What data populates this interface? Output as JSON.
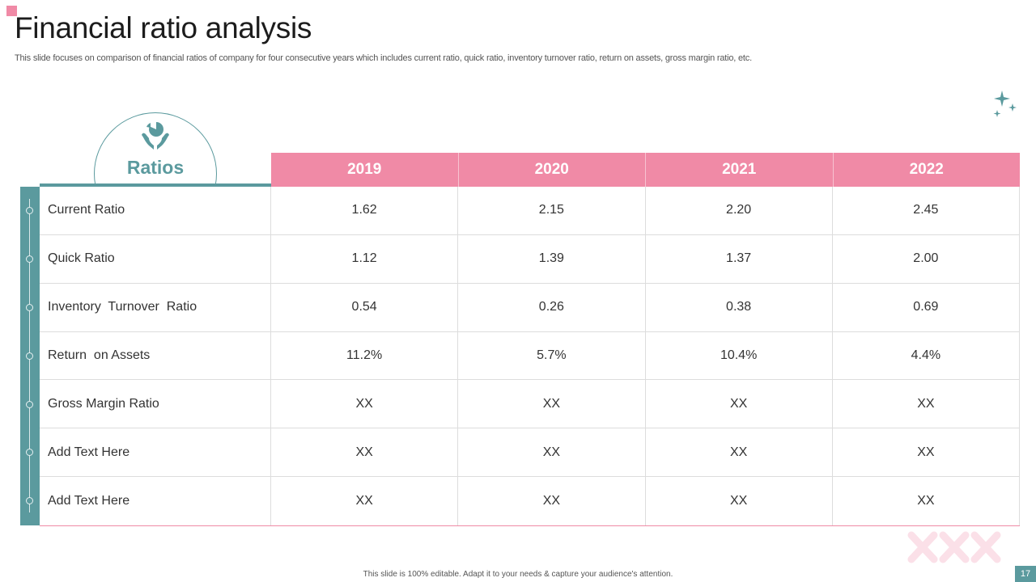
{
  "slide": {
    "title": "Financial ratio analysis",
    "subtitle": "This slide focuses on comparison of financial ratios of company for four consecutive years which includes current ratio, quick ratio, inventory turnover ratio, return on assets, gross margin ratio, etc.",
    "footer": "This slide is 100% editable. Adapt it to your needs & capture your audience's attention.",
    "page_number": "17"
  },
  "colors": {
    "accent_pink": "#f08aa6",
    "accent_teal": "#5b9a9e"
  },
  "icons": {
    "ratios": "hand-holding-pie-chart-icon",
    "decor": "sparkles-icon"
  },
  "table": {
    "header_label": "Ratios",
    "years": [
      "2019",
      "2020",
      "2021",
      "2022"
    ],
    "rows": [
      {
        "label": "Current Ratio",
        "values": [
          "1.62",
          "2.15",
          "2.20",
          "2.45"
        ]
      },
      {
        "label": "Quick Ratio",
        "values": [
          "1.12",
          "1.39",
          "1.37",
          "2.00"
        ]
      },
      {
        "label": "Inventory  Turnover  Ratio",
        "values": [
          "0.54",
          "0.26",
          "0.38",
          "0.69"
        ]
      },
      {
        "label": "Return  on Assets",
        "values": [
          "11.2%",
          "5.7%",
          "10.4%",
          "4.4%"
        ]
      },
      {
        "label": "Gross Margin Ratio",
        "values": [
          "XX",
          "XX",
          "XX",
          "XX"
        ]
      },
      {
        "label": "Add Text Here",
        "values": [
          "XX",
          "XX",
          "XX",
          "XX"
        ]
      },
      {
        "label": "Add Text Here",
        "values": [
          "XX",
          "XX",
          "XX",
          "XX"
        ]
      }
    ]
  }
}
